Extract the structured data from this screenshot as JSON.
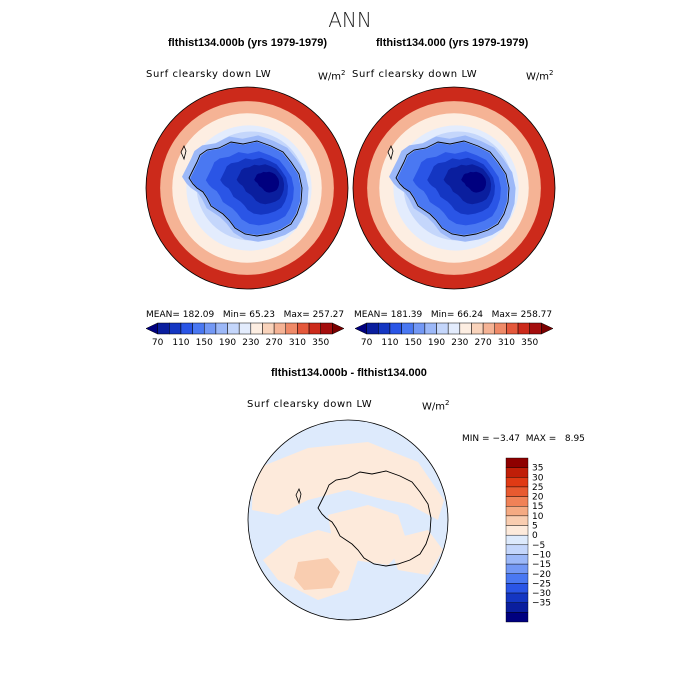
{
  "title": "ANN",
  "colors": {
    "abs_palette": [
      "#00007f",
      "#0a1e9e",
      "#1436c2",
      "#2a55e6",
      "#4a78f2",
      "#7398f5",
      "#9cb8f8",
      "#c4d6fb",
      "#e3ecfd",
      "#fdeee2",
      "#f9d3bb",
      "#f5b395",
      "#ef8a68",
      "#e4583b",
      "#cc2a1b",
      "#a40d0d",
      "#7a0000"
    ],
    "diff_palette": [
      "#00007f",
      "#0a1e9e",
      "#1436c2",
      "#2a55e6",
      "#4a78f2",
      "#7398f5",
      "#9cb8f8",
      "#c4d6fb",
      "#ddeafc",
      "#fdeadb",
      "#f9cdb0",
      "#f5aa82",
      "#f08257",
      "#e85a30",
      "#e03a14",
      "#c01e08",
      "#8e0000"
    ],
    "coast": "#000000"
  },
  "panels": [
    {
      "title": "flthist134.000b (yrs 1979-1979)",
      "variable": "Surf clearsky down LW",
      "units": "W/m",
      "units_sup": "2",
      "mean_label": "MEAN=",
      "mean": "182.09",
      "min_label": "Min=",
      "min": "65.23",
      "max_label": "Max=",
      "max": "257.27",
      "colorbar_labels": [
        "70",
        "110",
        "150",
        "190",
        "230",
        "270",
        "310",
        "350"
      ]
    },
    {
      "title": "flthist134.000 (yrs 1979-1979)",
      "variable": "Surf clearsky down LW",
      "units": "W/m",
      "units_sup": "2",
      "mean_label": "MEAN=",
      "mean": "181.39",
      "min_label": "Min=",
      "min": "66.24",
      "max_label": "Max=",
      "max": "258.77",
      "colorbar_labels": [
        "70",
        "110",
        "150",
        "190",
        "230",
        "270",
        "310",
        "350"
      ]
    }
  ],
  "diff": {
    "title": "flthist134.000b - flthist134.000",
    "variable": "Surf clearsky down LW",
    "units": "W/m",
    "units_sup": "2",
    "min_label": "MIN =",
    "min": "−3.47",
    "max_label": "MAX =",
    "max": "8.95",
    "colorbar_labels": [
      "35",
      "30",
      "25",
      "20",
      "15",
      "10",
      "5",
      "0",
      "−5",
      "−10",
      "−15",
      "−20",
      "−25",
      "−30",
      "−35"
    ]
  }
}
